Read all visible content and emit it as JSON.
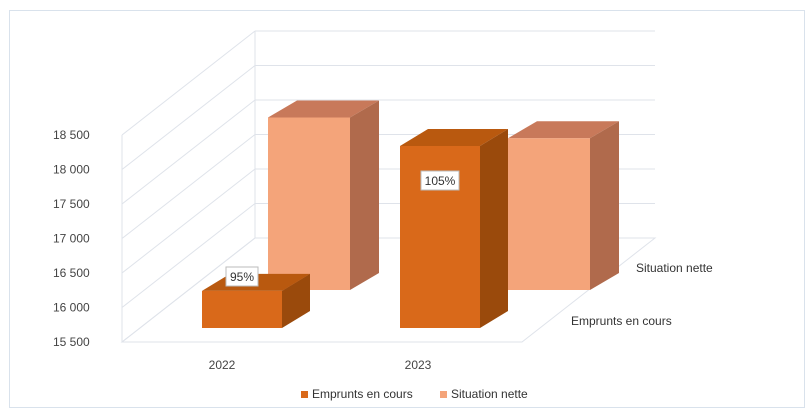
{
  "chart_data": {
    "type": "bar",
    "title": "",
    "xlabel": "",
    "ylabel": "",
    "categories": [
      "2022",
      "2023"
    ],
    "series": [
      {
        "name": "Emprunts en cours",
        "values": [
          16400,
          18500
        ],
        "labels": [
          "95%",
          "105%"
        ]
      },
      {
        "name": "Situation nette",
        "values": [
          18000,
          17700
        ],
        "labels": [
          "",
          ""
        ]
      }
    ],
    "ylim": [
      15500,
      18500
    ],
    "yticks": [
      "15 500",
      "16 000",
      "16 500",
      "17 000",
      "17 500",
      "18 000",
      "18 500"
    ],
    "grid": true,
    "legend": "bottom",
    "three_d": true
  },
  "colors": {
    "emprunts_front": "#d9691a",
    "emprunts_top": "#b9590f",
    "emprunts_side": "#9a4a0c",
    "situation_front": "#f4a47a",
    "situation_top": "#c8795a",
    "situation_side": "#b06a4c",
    "grid": "#dfe3ea"
  }
}
